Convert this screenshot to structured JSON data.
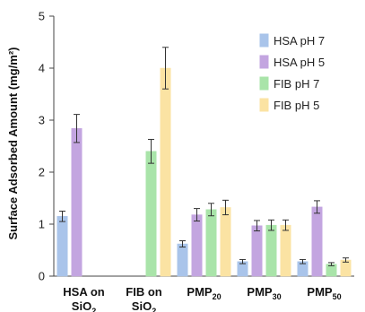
{
  "chart_data": {
    "type": "bar",
    "ylabel": "Surface Adsorbed Amount (mg/m²)",
    "ylim": [
      0,
      5
    ],
    "yticks": [
      0,
      1,
      2,
      3,
      4,
      5
    ],
    "categories": [
      {
        "line1": "HSA on",
        "line2": "SiO",
        "line2_sub": "2"
      },
      {
        "line1": "FIB on",
        "line2": "SiO",
        "line2_sub": "2"
      },
      {
        "line1": "PMP",
        "line1_sub": "20",
        "line2": "",
        "line2_sub": ""
      },
      {
        "line1": "PMP",
        "line1_sub": "30",
        "line2": "",
        "line2_sub": ""
      },
      {
        "line1": "PMP",
        "line1_sub": "50",
        "line2": "",
        "line2_sub": ""
      }
    ],
    "series": [
      {
        "name": "HSA pH 7",
        "color": "#a9c4ea",
        "values": [
          1.15,
          null,
          0.62,
          0.28,
          0.28
        ],
        "errors": [
          0.1,
          null,
          0.06,
          0.04,
          0.04
        ]
      },
      {
        "name": "HSA pH 5",
        "color": "#c3a5e0",
        "values": [
          2.84,
          null,
          1.18,
          0.97,
          1.33
        ],
        "errors": [
          0.27,
          null,
          0.12,
          0.1,
          0.12
        ]
      },
      {
        "name": "FIB pH 7",
        "color": "#a9e4a9",
        "values": [
          null,
          2.4,
          1.28,
          0.98,
          0.23
        ],
        "errors": [
          null,
          0.23,
          0.12,
          0.1,
          0.03
        ]
      },
      {
        "name": "FIB pH 5",
        "color": "#fbe3a3",
        "values": [
          null,
          4.0,
          1.32,
          0.98,
          0.31
        ],
        "errors": [
          null,
          0.4,
          0.14,
          0.1,
          0.04
        ]
      }
    ],
    "legend_position": "top-right"
  }
}
